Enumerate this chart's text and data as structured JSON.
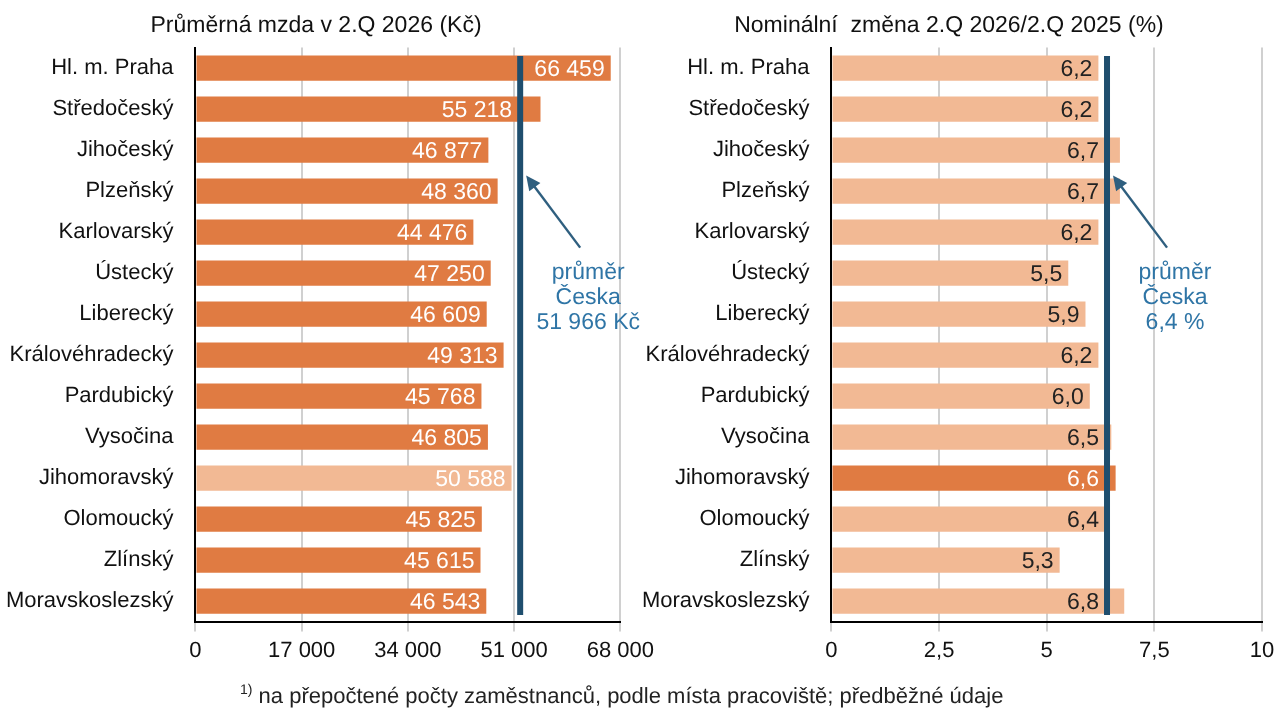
{
  "chart_data": [
    {
      "type": "bar",
      "orientation": "horizontal",
      "title": "Průměrná mzda v 2.Q 2026 (Kč)",
      "categories": [
        "Hl. m. Praha",
        "Středočeský",
        "Jihočeský",
        "Plzeňský",
        "Karlovarský",
        "Ústecký",
        "Liberecký",
        "Královéhradecký",
        "Pardubický",
        "Vysočina",
        "Jihomoravský",
        "Olomoucký",
        "Zlínský",
        "Moravskoslezský"
      ],
      "values": [
        66459,
        55218,
        46877,
        48360,
        44476,
        47250,
        46609,
        49313,
        45768,
        46805,
        50588,
        45825,
        45615,
        46543
      ],
      "value_labels": [
        "66 459",
        "55 218",
        "46 877",
        "48 360",
        "44 476",
        "47 250",
        "46 609",
        "49 313",
        "45 768",
        "46 805",
        "50 588",
        "45 825",
        "45 615",
        "46 543"
      ],
      "colors": [
        "#e07b42",
        "#e07b42",
        "#e07b42",
        "#e07b42",
        "#e07b42",
        "#e07b42",
        "#e07b42",
        "#e07b42",
        "#e07b42",
        "#e07b42",
        "#f2b994",
        "#e07b42",
        "#e07b42",
        "#e07b42"
      ],
      "xlim": [
        0,
        68000
      ],
      "xticks": [
        0,
        {
          "value": 17000,
          "label": "17 000"
        },
        {
          "value": 34000,
          "label": "34 000"
        },
        {
          "value": 51000,
          "label": "51 000"
        },
        {
          "value": 68000,
          "label": "68 000"
        }
      ],
      "grid": "x",
      "legend": false,
      "ref_lines": [
        {
          "axis": "x",
          "value": 51966,
          "label": "průměr\nČeska\n51 966 Kč",
          "color": "#1f4e6e"
        }
      ],
      "annotations": [
        "$^{1)}$ na přepočtené počty zaměstnanců, podle místa pracoviště; předběžné údaje"
      ]
    },
    {
      "type": "bar",
      "orientation": "horizontal",
      "title": "Nominální  změna 2.Q 2026/2.Q 2025 (%)",
      "categories": [
        "Hl. m. Praha",
        "Středočeský",
        "Jihočeský",
        "Plzeňský",
        "Karlovarský",
        "Ústecký",
        "Liberecký",
        "Královéhradecký",
        "Pardubický",
        "Vysočina",
        "Jihomoravský",
        "Olomoucký",
        "Zlínský",
        "Moravskoslezský"
      ],
      "values": [
        6.2,
        6.2,
        6.7,
        6.7,
        6.2,
        5.5,
        5.9,
        6.2,
        6.0,
        6.5,
        6.6,
        6.4,
        5.3,
        6.8
      ],
      "value_labels": [
        "6,2",
        "6,2",
        "6,7",
        "6,7",
        "6,2",
        "5,5",
        "5,9",
        "6,2",
        "6,0",
        "6,5",
        "6,6",
        "6,4",
        "5,3",
        "6,8"
      ],
      "colors": [
        "#f2b994",
        "#f2b994",
        "#f2b994",
        "#f2b994",
        "#f2b994",
        "#f2b994",
        "#f2b994",
        "#f2b994",
        "#f2b994",
        "#f2b994",
        "#e07b42",
        "#f2b994",
        "#f2b994",
        "#f2b994"
      ],
      "xlim": [
        0,
        10
      ],
      "xticks": [
        0,
        {
          "value": 2.5,
          "label": "2,5"
        },
        5,
        {
          "value": 7.5,
          "label": "7,5"
        },
        10
      ],
      "grid": "x",
      "legend": false,
      "ref_lines": [
        {
          "axis": "x",
          "value": 6.4,
          "label": "průměr\nČeska\n6,4 %",
          "color": "#1f4e6e"
        }
      ]
    }
  ]
}
